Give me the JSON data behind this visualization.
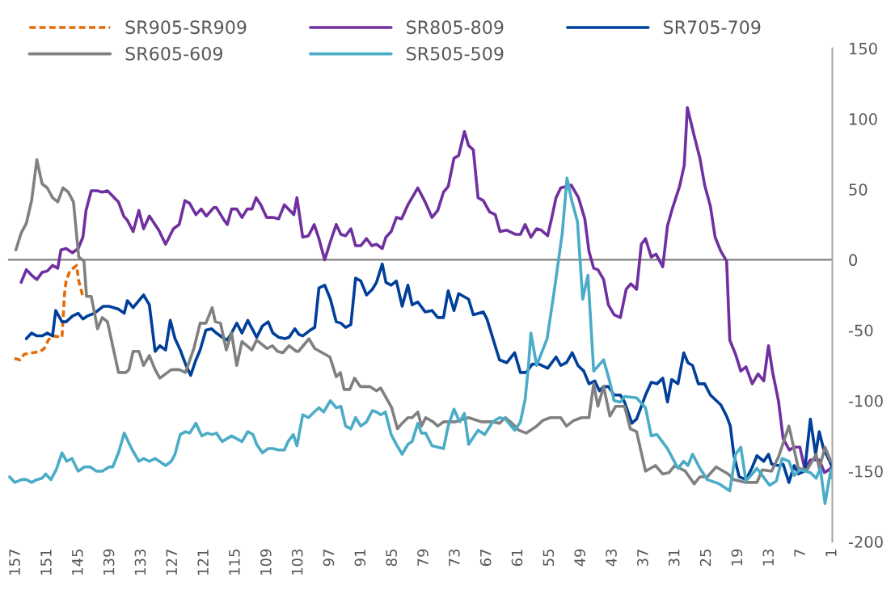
{
  "chart_data": {
    "type": "line",
    "legend": "top",
    "xlim": [
      158.5,
      1
    ],
    "xticks": [
      157,
      151,
      145,
      139,
      133,
      127,
      121,
      115,
      109,
      103,
      97,
      91,
      85,
      79,
      73,
      67,
      61,
      55,
      49,
      43,
      37,
      31,
      25,
      19,
      13,
      7,
      1
    ],
    "ylim": [
      -200,
      150
    ],
    "yticks": [
      150,
      100,
      50,
      0,
      -50,
      -100,
      -150,
      -200
    ],
    "ref_lines": [
      {
        "axis": "y",
        "value": 0,
        "color": "#808080"
      }
    ],
    "series": [
      {
        "name": "SR905-SR909",
        "color": "#e36c09",
        "line_style": "dashed",
        "x": [
          157.3,
          156.2,
          155.4,
          152.3,
          151.6,
          150.8,
          150.0,
          148.2,
          147.7,
          147.4,
          146.7,
          145.4,
          145.0,
          144.2
        ],
        "values": [
          -70,
          -71,
          -67,
          -65,
          -63,
          -57,
          -54,
          -55,
          -24,
          -15,
          -8,
          -4,
          -15,
          -26
        ]
      },
      {
        "name": "SR805-809",
        "color": "#7030a0",
        "x": [
          156,
          155,
          154,
          153,
          152,
          151,
          150,
          149,
          148.4,
          147.4,
          146.2,
          145.1,
          144.2,
          143.6,
          142.6,
          141.5,
          140.5,
          139.5,
          137.4,
          136.4,
          135.7,
          134.6,
          133.5,
          132.6,
          131.5,
          129.7,
          128.4,
          126.9,
          125.8,
          124.7,
          123.8,
          122.6,
          121.6,
          120.6,
          119.2,
          118.7,
          117.2,
          116.6,
          115.8,
          114.8,
          113.8,
          112.8,
          111.9,
          111.1,
          110.2,
          109.1,
          107.9,
          106.8,
          105.7,
          103.9,
          103.3,
          102.2,
          101.1,
          100,
          99.1,
          98,
          96.9,
          95.8,
          94.9,
          94,
          93,
          92.1,
          91.1,
          90,
          89,
          88.1,
          87,
          86.3,
          85.3,
          84.3,
          83.3,
          82.1,
          81.3,
          80.2,
          78.8,
          77.5,
          76.4,
          75.3,
          74.4,
          73.3,
          72.4,
          71.3,
          70.5,
          69.6,
          68.7,
          67.7,
          66.5,
          65.4,
          64.5,
          63.2,
          61.5,
          60.6,
          59.7,
          58.6,
          57.5,
          56.6,
          55.4,
          54.6,
          53.8,
          52.9,
          50.9,
          49.5,
          48.3,
          47.5,
          46.6,
          45.8,
          44.7,
          43.8,
          42.7,
          41.5,
          40.4,
          39.5,
          38.4,
          37.5,
          36.7,
          35.6,
          34.7,
          33.4,
          32.5,
          31.6,
          30.2,
          29.3,
          28.7,
          27.4,
          26.3,
          25.4,
          24.3,
          23.4,
          22.3,
          21.2,
          20.6,
          19.5,
          18.5,
          17.5,
          16.3,
          15.2,
          14.1,
          13.2,
          12.4,
          11.3,
          10.4,
          9.2,
          8.3,
          7.2,
          6.3,
          5.2,
          3.5,
          2.5,
          1.3,
          1
        ],
        "values": [
          -16,
          -7,
          -11,
          -14,
          -9,
          -8,
          -4,
          -6,
          7,
          8,
          5,
          8,
          16,
          35,
          49,
          49,
          48,
          49,
          41,
          31,
          28,
          20,
          35,
          22,
          31,
          21,
          11,
          22,
          25,
          42,
          40,
          32,
          36,
          31,
          37,
          37,
          28,
          25,
          36,
          36,
          30,
          36,
          36,
          44,
          39,
          30,
          30,
          29,
          39,
          32,
          44,
          16,
          17,
          25,
          15,
          0,
          13,
          25,
          18,
          17,
          22,
          10,
          10,
          15,
          10,
          11,
          8,
          16,
          20,
          30,
          29,
          39,
          44,
          51,
          41,
          30,
          35,
          48,
          52,
          72,
          74,
          91,
          81,
          78,
          44,
          42,
          34,
          32,
          20,
          21,
          18,
          18,
          25,
          16,
          22,
          21,
          17,
          30,
          44,
          51,
          53,
          44,
          29,
          6,
          -6,
          -7,
          -14,
          -32,
          -39,
          -41,
          -21,
          -17,
          -21,
          11,
          15,
          2,
          4,
          -5,
          24,
          36,
          52,
          67,
          108,
          88,
          72,
          53,
          38,
          16,
          6,
          -1,
          -57,
          -67,
          -79,
          -76,
          -88,
          -81,
          -86,
          -61,
          -80,
          -100,
          -127,
          -135,
          -133,
          -133,
          -148,
          -142,
          -142,
          -151,
          -148,
          -150
        ]
      },
      {
        "name": "SR705-709",
        "color": "#003f9a",
        "x": [
          155,
          154,
          153,
          152,
          151,
          150,
          149.4,
          148.2,
          147.4,
          146.2,
          145.1,
          144.2,
          143.4,
          142,
          140.3,
          139.2,
          137.4,
          136.3,
          135.7,
          134.6,
          133.5,
          132.6,
          131.5,
          130.4,
          129.5,
          128.4,
          127.5,
          126.6,
          125.6,
          124.6,
          123.6,
          122.7,
          121.8,
          120.7,
          119.6,
          118.7,
          117.6,
          116.6,
          115.8,
          114.8,
          113.8,
          112.7,
          111,
          109.9,
          108.8,
          107.9,
          106.8,
          105.6,
          104.8,
          103.7,
          102.9,
          102.2,
          100.8,
          99.9,
          99.1,
          98,
          96.9,
          95.8,
          94.9,
          94,
          93,
          92.1,
          91.1,
          90,
          88.9,
          88.1,
          87,
          86.3,
          85.3,
          84.3,
          83.2,
          82.1,
          81.3,
          80.2,
          78.8,
          77.5,
          76.4,
          75.3,
          74.4,
          73.3,
          72.4,
          70.5,
          69.6,
          67.7,
          67,
          65.6,
          64.6,
          63.2,
          61.7,
          60.6,
          59.5,
          58.3,
          57.1,
          55.4,
          53.8,
          52.9,
          51.8,
          50.7,
          49.6,
          48.5,
          47.5,
          46.4,
          45.5,
          44.7,
          43.8,
          42.7,
          41.5,
          40.7,
          39.3,
          38.4,
          36.7,
          35.6,
          34.5,
          33.4,
          32.5,
          31.7,
          30.5,
          29.4,
          28.6,
          27.7,
          26.6,
          25.4,
          24.3,
          22.3,
          21.2,
          20.5,
          19.8,
          18.8,
          17.5,
          16.4,
          15.4,
          14.1,
          13.2,
          12.6,
          11.3,
          10.4,
          9.3,
          8.3,
          7.5,
          6.3,
          5.2,
          4.2,
          3.5,
          2.7,
          1.5,
          1
        ],
        "values": [
          -56,
          -52,
          -54,
          -54,
          -52,
          -54,
          -36,
          -44,
          -44,
          -40,
          -38,
          -42,
          -40,
          -38,
          -33,
          -33,
          -35,
          -38,
          -29,
          -34,
          -29,
          -25,
          -32,
          -65,
          -61,
          -64,
          -43,
          -56,
          -64,
          -74,
          -82,
          -72,
          -64,
          -50,
          -49,
          -52,
          -55,
          -57,
          -52,
          -45,
          -52,
          -43,
          -55,
          -47,
          -44,
          -52,
          -55,
          -56,
          -55,
          -49,
          -53,
          -54,
          -50,
          -48,
          -20,
          -18,
          -28,
          -44,
          -45,
          -48,
          -46,
          -13,
          -15,
          -25,
          -21,
          -16,
          -3,
          -16,
          -18,
          -15,
          -33,
          -18,
          -32,
          -30,
          -37,
          -36,
          -41,
          -41,
          -22,
          -36,
          -24,
          -28,
          -39,
          -37,
          -42,
          -59,
          -71,
          -73,
          -66,
          -80,
          -80,
          -74,
          -74,
          -77,
          -69,
          -75,
          -73,
          -66,
          -75,
          -79,
          -88,
          -86,
          -93,
          -90,
          -90,
          -96,
          -96,
          -101,
          -116,
          -113,
          -96,
          -87,
          -88,
          -84,
          -101,
          -85,
          -88,
          -66,
          -73,
          -75,
          -88,
          -88,
          -96,
          -103,
          -111,
          -118,
          -139,
          -154,
          -156,
          -148,
          -139,
          -143,
          -138,
          -145,
          -146,
          -145,
          -158,
          -146,
          -152,
          -150,
          -113,
          -138,
          -122,
          -134,
          -143,
          -148
        ]
      },
      {
        "name": "SR605-609",
        "color": "#808080",
        "x": [
          157,
          156,
          155,
          154,
          153,
          152,
          151,
          150,
          149,
          148,
          147,
          146,
          145,
          144,
          143.5,
          142.6,
          141.4,
          140.5,
          139.5,
          137.4,
          136,
          135.4,
          134.6,
          133.5,
          132.6,
          131.5,
          130.4,
          129.5,
          128.4,
          127.3,
          125.8,
          124.6,
          123,
          121.8,
          120.7,
          119.5,
          118.9,
          117.9,
          116.8,
          115.8,
          114.8,
          113.8,
          111.9,
          111,
          109,
          108,
          107,
          106,
          104.8,
          103.4,
          103,
          101,
          99.9,
          97,
          95.8,
          95,
          94.3,
          93.2,
          92.3,
          91.2,
          89.4,
          88.1,
          87.3,
          85.2,
          84.1,
          83.2,
          82.1,
          81.3,
          80.2,
          79.5,
          78.7,
          77.3,
          76.4,
          75.3,
          73.1,
          70.5,
          68,
          65.9,
          64.6,
          63.5,
          62.2,
          60.9,
          59.5,
          57.5,
          56.3,
          54.9,
          52.9,
          51.8,
          50.4,
          48.9,
          47.5,
          46.6,
          45.8,
          44.7,
          43.5,
          42.4,
          40.7,
          39.6,
          38.4,
          36.7,
          34.8,
          33.4,
          32.2,
          31.1,
          29.1,
          27.4,
          26.3,
          24.9,
          23.2,
          20.9,
          19.8,
          17.5,
          15.4,
          14.4,
          12.6,
          11.3,
          9.3,
          7.5,
          5.8,
          4.1,
          3.5,
          2.4,
          1.3,
          1
        ],
        "values": [
          7,
          19,
          26,
          42,
          71,
          54,
          51,
          44,
          41,
          51,
          48,
          41,
          2,
          -1,
          -26,
          -26,
          -49,
          -41,
          -44,
          -80,
          -80,
          -78,
          -65,
          -65,
          -75,
          -68,
          -78,
          -84,
          -81,
          -78,
          -78,
          -80,
          -63,
          -45,
          -45,
          -34,
          -44,
          -45,
          -64,
          -52,
          -75,
          -58,
          -64,
          -57,
          -63,
          -61,
          -65,
          -66,
          -61,
          -65,
          -65,
          -56,
          -63,
          -69,
          -83,
          -80,
          -92,
          -92,
          -84,
          -90,
          -90,
          -93,
          -91,
          -105,
          -120,
          -116,
          -112,
          -112,
          -108,
          -118,
          -112,
          -115,
          -118,
          -115,
          -115,
          -112,
          -115,
          -115,
          -116,
          -112,
          -116,
          -121,
          -123,
          -118,
          -114,
          -112,
          -112,
          -118,
          -114,
          -112,
          -112,
          -88,
          -104,
          -90,
          -111,
          -104,
          -104,
          -120,
          -122,
          -150,
          -146,
          -152,
          -151,
          -146,
          -150,
          -159,
          -154,
          -154,
          -147,
          -152,
          -156,
          -158,
          -158,
          -149,
          -150,
          -140,
          -118,
          -148,
          -149,
          -138,
          -148,
          -133,
          -143,
          -143
        ]
      },
      {
        "name": "SR505-509",
        "color": "#4bacc6",
        "x": [
          158.2,
          157.2,
          155.9,
          155,
          154,
          153,
          152,
          151.3,
          150.3,
          149.3,
          148.2,
          147.3,
          146.3,
          145.1,
          143.9,
          142.8,
          141.6,
          140.5,
          139.2,
          138.5,
          137.4,
          136.3,
          134.9,
          133.5,
          132.6,
          131.5,
          130.4,
          128.4,
          127.3,
          126.6,
          125.6,
          124.6,
          123.8,
          122.6,
          121.5,
          120.4,
          119.5,
          118.7,
          117.6,
          115.8,
          113.8,
          112.7,
          111.7,
          111,
          109.9,
          108.8,
          107.9,
          106.8,
          105.7,
          105,
          104,
          103.3,
          102.2,
          101.1,
          100,
          99.1,
          98.2,
          96.9,
          95.8,
          94.9,
          94,
          93,
          92.1,
          91.1,
          90,
          88.9,
          88.1,
          87.3,
          86.4,
          85.3,
          84.3,
          83.2,
          82.1,
          81.3,
          80.2,
          79.5,
          78.7,
          77.5,
          75.3,
          74.4,
          73.3,
          72.2,
          71.3,
          70.5,
          68.7,
          67.4,
          65.9,
          64.6,
          63.5,
          61.7,
          60.6,
          59.7,
          59.1,
          58.6,
          57.5,
          55.5,
          54.1,
          52.6,
          51.7,
          50.8,
          49.7,
          48.7,
          47.7,
          46.6,
          44.7,
          43.5,
          42.7,
          41.5,
          40.7,
          38.4,
          36.7,
          35.6,
          34.5,
          32.5,
          30.5,
          29.4,
          28.6,
          27.7,
          26.3,
          24.9,
          22.6,
          20.6,
          19.5,
          18.5,
          17.5,
          15.4,
          13,
          11.7,
          10.6,
          9.3,
          8.3,
          7.2,
          5.2,
          4.1,
          3.3,
          2.4,
          1.3,
          1
        ],
        "values": [
          -154,
          -158,
          -156,
          -156,
          -158,
          -156,
          -155,
          -152,
          -156,
          -149,
          -137,
          -143,
          -141,
          -150,
          -147,
          -147,
          -150,
          -150,
          -147,
          -147,
          -137,
          -123,
          -134,
          -143,
          -141,
          -143,
          -141,
          -146,
          -143,
          -138,
          -124,
          -122,
          -123,
          -116,
          -125,
          -123,
          -124,
          -123,
          -129,
          -125,
          -129,
          -122,
          -124,
          -131,
          -137,
          -134,
          -134,
          -135,
          -135,
          -129,
          -124,
          -132,
          -110,
          -112,
          -108,
          -105,
          -108,
          -100,
          -105,
          -104,
          -118,
          -120,
          -112,
          -118,
          -115,
          -107,
          -108,
          -110,
          -108,
          -124,
          -131,
          -138,
          -131,
          -129,
          -116,
          -123,
          -123,
          -132,
          -134,
          -118,
          -106,
          -115,
          -109,
          -131,
          -121,
          -124,
          -115,
          -112,
          -113,
          -121,
          -115,
          -99,
          -77,
          -52,
          -75,
          -56,
          -21,
          19,
          58,
          42,
          27,
          -28,
          -11,
          -79,
          -71,
          -87,
          -100,
          -101,
          -97,
          -98,
          -105,
          -125,
          -124,
          -134,
          -148,
          -143,
          -146,
          -138,
          -148,
          -156,
          -159,
          -164,
          -138,
          -133,
          -157,
          -148,
          -160,
          -157,
          -141,
          -143,
          -153,
          -149,
          -151,
          -155,
          -148,
          -173,
          -149,
          -155
        ]
      }
    ]
  }
}
